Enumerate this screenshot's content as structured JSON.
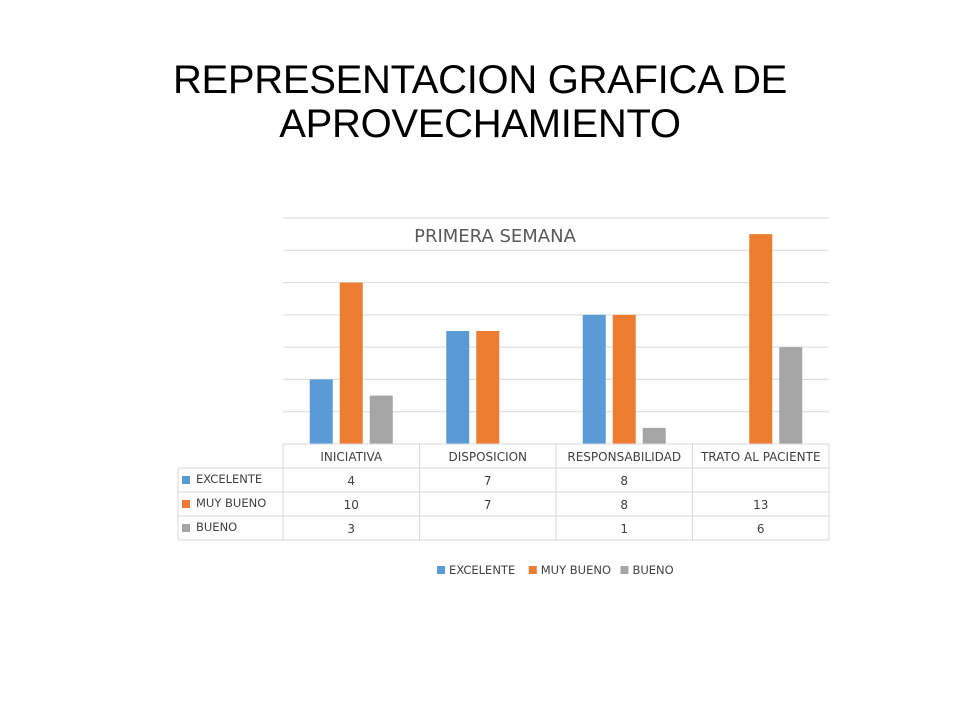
{
  "slide": {
    "title_line1": "REPRESENTACION GRAFICA DE",
    "title_line2": "APROVECHAMIENTO"
  },
  "chart_data": {
    "type": "bar",
    "title": "PRIMERA SEMANA",
    "categories": [
      "INICIATIVA",
      "DISPOSICION",
      "RESPONSABILIDAD",
      "TRATO AL PACIENTE"
    ],
    "series": [
      {
        "name": "EXCELENTE",
        "color": "#5B9BD5",
        "values": [
          4,
          7,
          8,
          null
        ],
        "labels": [
          "4",
          "7",
          "8",
          ""
        ]
      },
      {
        "name": "MUY BUENO",
        "color": "#ED7D31",
        "values": [
          10,
          7,
          8,
          13
        ],
        "labels": [
          "10",
          "7",
          "8",
          "13"
        ]
      },
      {
        "name": "BUENO",
        "color": "#A5A5A5",
        "values": [
          3,
          null,
          1,
          6
        ],
        "labels": [
          "3",
          "",
          "1",
          "6"
        ]
      }
    ],
    "ylim": [
      0,
      14
    ],
    "y_step": 2,
    "y_tick_labels_visible": false,
    "grid": true,
    "data_table": true,
    "legend_position": "bottom",
    "colors": {
      "grid": "#D9D9D9",
      "text": "#404040",
      "title": "#595959"
    }
  }
}
